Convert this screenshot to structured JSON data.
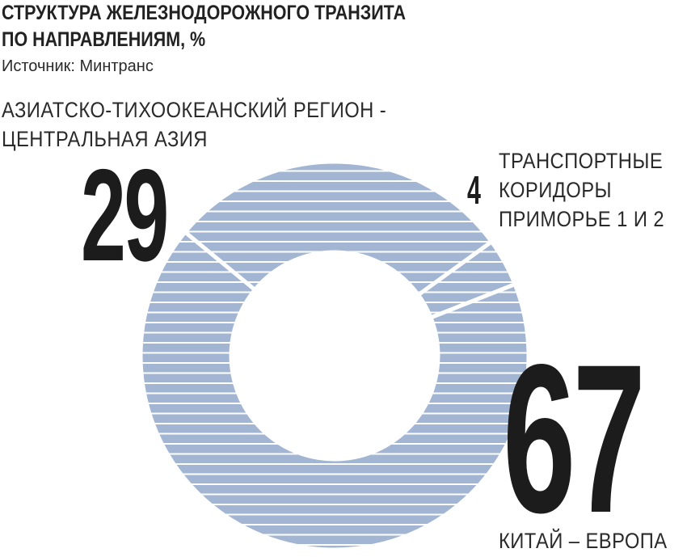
{
  "header": {
    "title_line1": "СТРУКТУРА ЖЕЛЕЗНОДОРОЖНОГО ТРАНЗИТА",
    "title_line2": "ПО НАПРАВЛЕНИЯМ, %",
    "source": "Источник: Минтранс"
  },
  "colors": {
    "slice_fill": "#a2b5d2",
    "stripe": "#ffffff",
    "text": "#1c1c1c"
  },
  "chart_data": {
    "type": "pie",
    "variant": "donut",
    "title": "СТРУКТУРА ЖЕЛЕЗНОДОРОЖНОГО ТРАНЗИТА ПО НАПРАВЛЕНИЯМ, %",
    "unit": "%",
    "slices": [
      {
        "label_line1": "ТРАНСПОРТНЫЕ",
        "label_line2": "КОРИДОРЫ",
        "label_line3": "ПРИМОРЬЕ 1 И 2",
        "value": 4,
        "value_text": "4"
      },
      {
        "label_line1": "КИТАЙ – ЕВРОПА",
        "value": 67,
        "value_text": "67"
      },
      {
        "label_line1": "АЗИАТСКО-ТИХООКЕАНСКИЙ РЕГИОН -",
        "label_line2": "ЦЕНТРАЛЬНАЯ АЗИЯ",
        "value": 29,
        "value_text": "29"
      }
    ]
  }
}
